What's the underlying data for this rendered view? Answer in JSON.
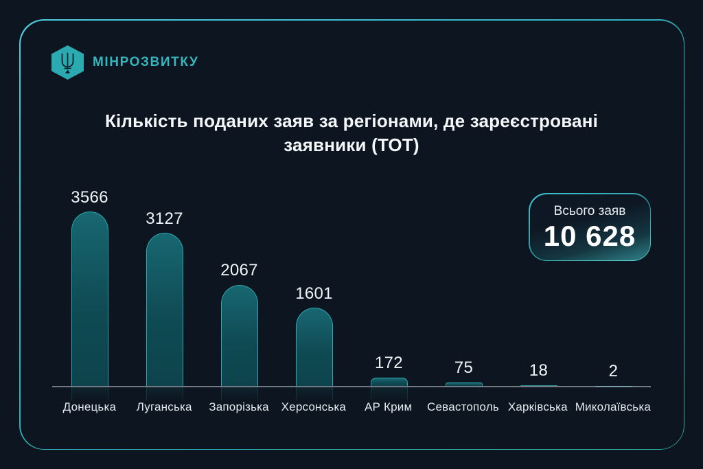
{
  "page": {
    "background_color": "#0c1520",
    "accent_color": "#2fa8b0",
    "frame_border_colors": [
      "#4fd0e2",
      "#2aa89b"
    ]
  },
  "header": {
    "brand": "МІНРОЗВИТКУ",
    "logo_icon": "trident-hexagon-icon",
    "logo_color": "#2aabb2"
  },
  "title": {
    "line1": "Кількість поданих заяв за регіонами, де зареєстровані",
    "line2": "заявники (ТОТ)"
  },
  "total_badge": {
    "label": "Всього заяв",
    "value": "10 628"
  },
  "chart_data": {
    "type": "bar",
    "title": "Кількість поданих заяв за регіонами, де зареєстровані заявники (ТОТ)",
    "categories": [
      "Донецька",
      "Луганська",
      "Запорізька",
      "Херсонська",
      "АР Крим",
      "Севастополь",
      "Харківська",
      "Миколаївська"
    ],
    "values": [
      3566,
      3127,
      2067,
      1601,
      172,
      75,
      18,
      2
    ],
    "total": 10628,
    "xlabel": "",
    "ylabel": "",
    "ylim": [
      0,
      3566
    ],
    "grid": false,
    "legend": false,
    "bar_fill_color": "#0f4b54",
    "bar_border_color": "#2da6ad",
    "value_labels_shown": true
  }
}
